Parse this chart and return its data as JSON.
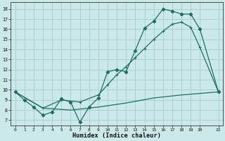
{
  "xlabel": "Humidex (Indice chaleur)",
  "bg_color": "#cce9e9",
  "grid_color": "#aad0d0",
  "line_color": "#1e6e62",
  "xlim": [
    -0.5,
    22.5
  ],
  "ylim": [
    6.5,
    18.7
  ],
  "xticks": [
    0,
    1,
    2,
    3,
    4,
    5,
    6,
    7,
    8,
    9,
    10,
    11,
    12,
    13,
    14,
    15,
    16,
    17,
    18,
    19,
    20,
    22
  ],
  "yticks": [
    7,
    8,
    9,
    10,
    11,
    12,
    13,
    14,
    15,
    16,
    17,
    18
  ],
  "series1_x": [
    0,
    1,
    2,
    3,
    4,
    5,
    6,
    7,
    8,
    9,
    10,
    11,
    12,
    13,
    14,
    15,
    16,
    17,
    18,
    19,
    20,
    22
  ],
  "series1_y": [
    9.8,
    9.0,
    8.3,
    7.5,
    7.8,
    9.1,
    8.8,
    6.8,
    8.3,
    9.2,
    11.8,
    12.0,
    11.8,
    13.9,
    16.1,
    16.8,
    18.0,
    17.8,
    17.5,
    17.5,
    16.0,
    9.8
  ],
  "series2_x": [
    0,
    3,
    5,
    7,
    9,
    10,
    11,
    12,
    13,
    14,
    15,
    16,
    17,
    18,
    19,
    20,
    22
  ],
  "series2_y": [
    9.8,
    8.2,
    9.0,
    8.8,
    9.5,
    10.5,
    11.5,
    12.3,
    13.2,
    14.1,
    15.0,
    15.8,
    16.5,
    16.7,
    16.2,
    14.2,
    9.8
  ],
  "series3_x": [
    0,
    3,
    6,
    9,
    12,
    15,
    18,
    22
  ],
  "series3_y": [
    9.8,
    8.2,
    8.0,
    8.3,
    8.7,
    9.2,
    9.5,
    9.8
  ]
}
